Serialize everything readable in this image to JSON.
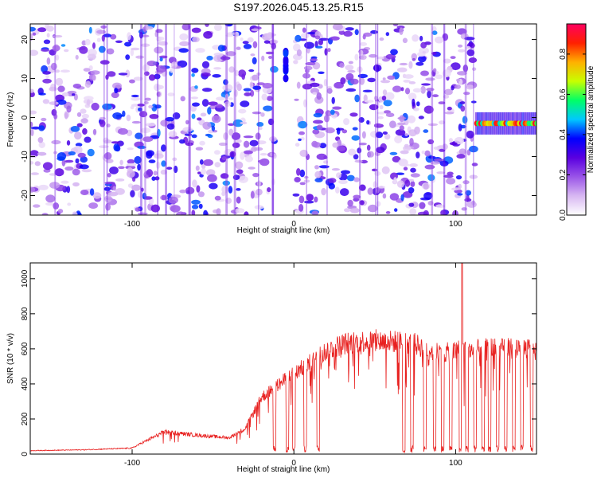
{
  "page": {
    "title": "S197.2026.045.13.25.R15"
  },
  "chart_data": [
    {
      "type": "heatmap",
      "xlabel": "Height of straight line (km)",
      "ylabel": "Frequency (Hz)",
      "xlim": [
        -163,
        150
      ],
      "ylim": [
        -25,
        24
      ],
      "x_ticks": [
        -100,
        0,
        100
      ],
      "x_tick_labels": [
        "-100",
        "0",
        "100"
      ],
      "y_ticks": [
        -20,
        -10,
        0,
        10,
        20
      ],
      "y_tick_labels": [
        "-20",
        "-10",
        "0",
        "10",
        "20"
      ],
      "grid": false,
      "colorbar": {
        "label": "Normalized spectral amplitude",
        "range": [
          0.0,
          0.95
        ],
        "ticks": [
          0.0,
          0.2,
          0.4,
          0.6,
          0.8
        ],
        "tick_labels": [
          "0.0",
          "0.2",
          "0.4",
          "0.6",
          "0.8"
        ],
        "colormap": [
          "#ffffff",
          "#d8b8f2",
          "#9a55e8",
          "#5a00e0",
          "#0000ff",
          "#00c8ff",
          "#00ff66",
          "#c8ff00",
          "#ffb000",
          "#ff2000",
          "#ff0060"
        ]
      },
      "features": [
        {
          "name": "noise field",
          "x_range": [
            -163,
            112
          ],
          "y_range": [
            -25,
            24
          ],
          "level": 0.2
        },
        {
          "name": "blank gap",
          "x_range": [
            -11,
            0
          ],
          "y_range": [
            -25,
            24
          ],
          "level": 0.0
        },
        {
          "name": "blank region",
          "x_range": [
            112,
            150
          ],
          "y_range": [
            -25,
            24
          ],
          "level": 0.0
        },
        {
          "name": "high band near 15 Hz",
          "x": -5,
          "y_range": [
            10,
            17
          ],
          "level": 0.35
        },
        {
          "name": "narrow line near -1.5 Hz",
          "x_range": [
            112,
            150
          ],
          "y": -1.5,
          "level": 0.9
        }
      ]
    },
    {
      "type": "line",
      "xlabel": "Height of straight line (km)",
      "ylabel": "SNR (10 * v/v)",
      "xlim": [
        -163,
        150
      ],
      "ylim": [
        0,
        1090
      ],
      "x_ticks": [
        -100,
        0,
        100
      ],
      "x_tick_labels": [
        "-100",
        "0",
        "100"
      ],
      "y_ticks": [
        0,
        200,
        400,
        600,
        800,
        1000
      ],
      "y_tick_labels": [
        "0",
        "200",
        "400",
        "600",
        "800",
        "1000"
      ],
      "grid": false,
      "series": [
        {
          "name": "SNR",
          "color": "#e8201f",
          "envelope": {
            "x": [
              -163,
              -130,
              -100,
              -95,
              -80,
              -60,
              -40,
              -30,
              -20,
              -10,
              0,
              10,
              20,
              30,
              40,
              50,
              60,
              68,
              75,
              85,
              95,
              100,
              104,
              110,
              120,
              130,
              140,
              150
            ],
            "y": [
              20,
              25,
              35,
              60,
              130,
              110,
              95,
              150,
              330,
              400,
              470,
              530,
              600,
              640,
              655,
              660,
              655,
              650,
              640,
              600,
              590,
              595,
              620,
              600,
              620,
              610,
              625,
              600
            ]
          },
          "peak": {
            "x": 104,
            "y": 1090
          },
          "dropouts_x": [
            -12,
            -4,
            0,
            7,
            15,
            68,
            73,
            81,
            87,
            92,
            97,
            103,
            107,
            112,
            117,
            121,
            126,
            131,
            136,
            141,
            147
          ]
        }
      ]
    }
  ]
}
